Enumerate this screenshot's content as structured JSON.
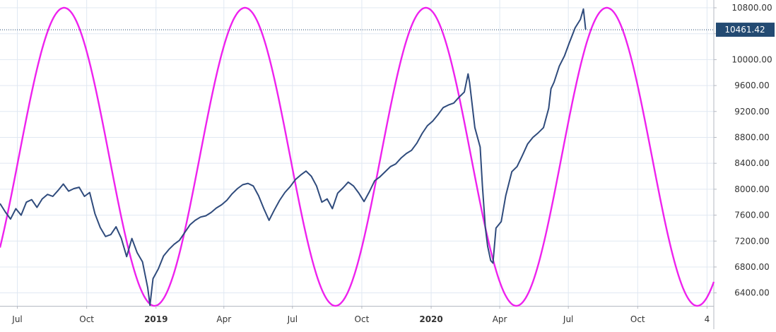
{
  "chart_data": {
    "type": "line",
    "title": "",
    "xlabel": "",
    "ylabel": "",
    "ylim": [
      6200,
      10920
    ],
    "xlim": [
      "2018-06-08",
      "2021-01-10"
    ],
    "grid": true,
    "y_ticks": [
      6400,
      6800,
      7200,
      7600,
      8000,
      8400,
      8800,
      9200,
      9600,
      10000,
      10400,
      10800
    ],
    "y_tick_labels": [
      "6400.00",
      "6800.00",
      "7200.00",
      "7600.00",
      "8000.00",
      "8400.00",
      "8800.00",
      "9200.00",
      "9600.00",
      "10000.00",
      "10400.00",
      "10800.00"
    ],
    "x_ticks": [
      {
        "date": "2018-07-01",
        "label": "Jul",
        "bold": false
      },
      {
        "date": "2018-10-01",
        "label": "Oct",
        "bold": false
      },
      {
        "date": "2019-01-01",
        "label": "2019",
        "bold": true
      },
      {
        "date": "2019-04-01",
        "label": "Apr",
        "bold": false
      },
      {
        "date": "2019-07-01",
        "label": "Jul",
        "bold": false
      },
      {
        "date": "2019-10-01",
        "label": "Oct",
        "bold": false
      },
      {
        "date": "2020-01-01",
        "label": "2020",
        "bold": true
      },
      {
        "date": "2020-04-01",
        "label": "Apr",
        "bold": false
      },
      {
        "date": "2020-07-01",
        "label": "Jul",
        "bold": false
      },
      {
        "date": "2020-10-01",
        "label": "Oct",
        "bold": false
      },
      {
        "date": "2021-01-01",
        "label": "4",
        "bold": false
      }
    ],
    "last_value": 10461.42,
    "last_value_label": "10461.42",
    "colors": {
      "price": "#2f4b7c",
      "cycle": "#ee22ee",
      "grid": "#e0e8f2",
      "axis_text": "#333333",
      "label_bg": "#234a72",
      "label_text": "#ffffff",
      "dotted_line": "#234a72"
    },
    "series": [
      {
        "type": "line",
        "color": "#2f4b7c",
        "x": [
          "2018-06-08",
          "2018-06-15",
          "2018-06-22",
          "2018-06-29",
          "2018-07-06",
          "2018-07-13",
          "2018-07-20",
          "2018-07-27",
          "2018-08-03",
          "2018-08-10",
          "2018-08-17",
          "2018-08-24",
          "2018-08-31",
          "2018-09-07",
          "2018-09-14",
          "2018-09-21",
          "2018-09-28",
          "2018-10-05",
          "2018-10-12",
          "2018-10-19",
          "2018-10-26",
          "2018-11-02",
          "2018-11-09",
          "2018-11-16",
          "2018-11-23",
          "2018-11-30",
          "2018-12-07",
          "2018-12-14",
          "2018-12-21",
          "2018-12-24",
          "2018-12-28",
          "2019-01-04",
          "2019-01-11",
          "2019-01-18",
          "2019-01-25",
          "2019-02-01",
          "2019-02-08",
          "2019-02-15",
          "2019-02-22",
          "2019-03-01",
          "2019-03-08",
          "2019-03-15",
          "2019-03-22",
          "2019-03-29",
          "2019-04-05",
          "2019-04-12",
          "2019-04-19",
          "2019-04-26",
          "2019-05-03",
          "2019-05-10",
          "2019-05-17",
          "2019-05-24",
          "2019-05-31",
          "2019-06-07",
          "2019-06-14",
          "2019-06-21",
          "2019-06-28",
          "2019-07-05",
          "2019-07-12",
          "2019-07-19",
          "2019-07-26",
          "2019-08-02",
          "2019-08-09",
          "2019-08-16",
          "2019-08-23",
          "2019-08-30",
          "2019-09-06",
          "2019-09-13",
          "2019-09-20",
          "2019-09-27",
          "2019-10-04",
          "2019-10-11",
          "2019-10-18",
          "2019-10-25",
          "2019-11-01",
          "2019-11-08",
          "2019-11-15",
          "2019-11-22",
          "2019-11-29",
          "2019-12-06",
          "2019-12-13",
          "2019-12-20",
          "2019-12-27",
          "2020-01-03",
          "2020-01-10",
          "2020-01-17",
          "2020-01-24",
          "2020-01-31",
          "2020-02-07",
          "2020-02-14",
          "2020-02-19",
          "2020-02-21",
          "2020-02-28",
          "2020-03-06",
          "2020-03-09",
          "2020-03-13",
          "2020-03-16",
          "2020-03-20",
          "2020-03-23",
          "2020-03-27",
          "2020-04-03",
          "2020-04-09",
          "2020-04-17",
          "2020-04-24",
          "2020-05-01",
          "2020-05-08",
          "2020-05-15",
          "2020-05-22",
          "2020-05-29",
          "2020-06-05",
          "2020-06-08",
          "2020-06-12",
          "2020-06-19",
          "2020-06-26",
          "2020-07-02",
          "2020-07-10",
          "2020-07-17",
          "2020-07-21",
          "2020-07-24"
        ],
        "values": [
          7780,
          7650,
          7540,
          7700,
          7600,
          7800,
          7840,
          7720,
          7850,
          7920,
          7890,
          7980,
          8080,
          7970,
          8010,
          8030,
          7890,
          7950,
          7620,
          7410,
          7270,
          7300,
          7420,
          7240,
          6960,
          7240,
          7020,
          6880,
          6480,
          6210,
          6620,
          6770,
          6970,
          7070,
          7150,
          7210,
          7330,
          7450,
          7520,
          7570,
          7590,
          7640,
          7710,
          7760,
          7830,
          7930,
          8010,
          8070,
          8090,
          8050,
          7900,
          7700,
          7520,
          7680,
          7830,
          7950,
          8040,
          8150,
          8220,
          8280,
          8200,
          8050,
          7800,
          7850,
          7700,
          7940,
          8020,
          8110,
          8050,
          7940,
          7810,
          7960,
          8130,
          8190,
          8270,
          8350,
          8390,
          8480,
          8550,
          8600,
          8710,
          8860,
          8980,
          9050,
          9150,
          9260,
          9300,
          9330,
          9420,
          9500,
          9780,
          9650,
          8950,
          8650,
          8050,
          7400,
          7120,
          6900,
          6860,
          7400,
          7500,
          7900,
          8270,
          8350,
          8520,
          8700,
          8800,
          8870,
          8950,
          9250,
          9550,
          9650,
          9900,
          10060,
          10250,
          10490,
          10620,
          10780,
          10461
        ]
      },
      {
        "type": "cycle",
        "color": "#ee22ee",
        "center": 8500,
        "amplitude": 2300,
        "period_days": 240,
        "peak_date": "2018-09-01",
        "peaks": [
          "2018-09-01",
          "2019-04-29",
          "2019-12-25",
          "2020-08-21"
        ],
        "troughs": [
          "2018-12-31",
          "2019-08-28",
          "2020-04-23",
          "2020-12-19"
        ]
      }
    ]
  }
}
